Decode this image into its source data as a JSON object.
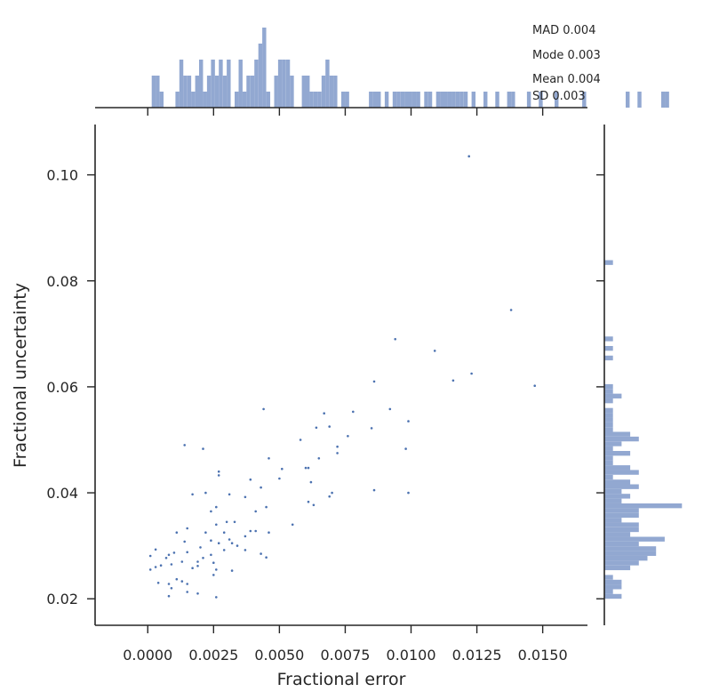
{
  "colors": {
    "bar": "#92a8d1",
    "point": "#4c72b0",
    "axis": "#262626"
  },
  "chart_data": {
    "type": "scatter",
    "variant": "joint plot with marginal histograms",
    "xlabel": "Fractional error",
    "ylabel": "Fractional uncertainty",
    "xlim": [
      -0.002,
      0.0167
    ],
    "ylim": [
      0.015,
      0.1095
    ],
    "x_ticks": [
      "0.0000",
      "0.0025",
      "0.0050",
      "0.0075",
      "0.0100",
      "0.0125",
      "0.0150"
    ],
    "y_ticks": [
      "0.02",
      "0.04",
      "0.06",
      "0.08",
      "0.10"
    ],
    "stats": [
      "MAD 0.004",
      "Mode 0.003",
      "Mean 0.004",
      "SD 0.003"
    ],
    "points": [
      [
        0.0122,
        0.1035
      ],
      [
        0.0138,
        0.0745
      ],
      [
        0.0094,
        0.069
      ],
      [
        0.0109,
        0.0668
      ],
      [
        0.0123,
        0.0625
      ],
      [
        0.0116,
        0.0612
      ],
      [
        0.0086,
        0.061
      ],
      [
        0.0147,
        0.0602
      ],
      [
        0.0044,
        0.0558
      ],
      [
        0.0092,
        0.0558
      ],
      [
        0.0067,
        0.055
      ],
      [
        0.0078,
        0.0553
      ],
      [
        0.0099,
        0.0535
      ],
      [
        0.0064,
        0.0523
      ],
      [
        0.0069,
        0.0525
      ],
      [
        0.0085,
        0.0522
      ],
      [
        0.0076,
        0.0507
      ],
      [
        0.0058,
        0.05
      ],
      [
        0.0072,
        0.0487
      ],
      [
        0.0072,
        0.0475
      ],
      [
        0.0098,
        0.0483
      ],
      [
        0.0014,
        0.049
      ],
      [
        0.0021,
        0.0483
      ],
      [
        0.0046,
        0.0465
      ],
      [
        0.0065,
        0.0465
      ],
      [
        0.0051,
        0.0445
      ],
      [
        0.006,
        0.0447
      ],
      [
        0.0061,
        0.0447
      ],
      [
        0.0027,
        0.044
      ],
      [
        0.0027,
        0.0433
      ],
      [
        0.0039,
        0.0425
      ],
      [
        0.005,
        0.0427
      ],
      [
        0.0062,
        0.042
      ],
      [
        0.0043,
        0.041
      ],
      [
        0.0086,
        0.0405
      ],
      [
        0.0022,
        0.04
      ],
      [
        0.0017,
        0.0397
      ],
      [
        0.0031,
        0.0397
      ],
      [
        0.007,
        0.04
      ],
      [
        0.0069,
        0.0393
      ],
      [
        0.0099,
        0.04
      ],
      [
        0.0037,
        0.0392
      ],
      [
        0.0061,
        0.0383
      ],
      [
        0.0063,
        0.0377
      ],
      [
        0.0026,
        0.0373
      ],
      [
        0.0045,
        0.0373
      ],
      [
        0.0041,
        0.0365
      ],
      [
        0.0024,
        0.0365
      ],
      [
        0.0033,
        0.0345
      ],
      [
        0.003,
        0.0345
      ],
      [
        0.0015,
        0.0333
      ],
      [
        0.0026,
        0.034
      ],
      [
        0.0055,
        0.034
      ],
      [
        0.0011,
        0.0325
      ],
      [
        0.0022,
        0.0325
      ],
      [
        0.0029,
        0.0325
      ],
      [
        0.0039,
        0.0328
      ],
      [
        0.0041,
        0.0328
      ],
      [
        0.0046,
        0.0325
      ],
      [
        0.0037,
        0.0318
      ],
      [
        0.0031,
        0.0312
      ],
      [
        0.0014,
        0.0308
      ],
      [
        0.0024,
        0.031
      ],
      [
        0.0027,
        0.0305
      ],
      [
        0.0032,
        0.0305
      ],
      [
        0.0034,
        0.03
      ],
      [
        0.002,
        0.0297
      ],
      [
        0.0029,
        0.0292
      ],
      [
        0.0003,
        0.0293
      ],
      [
        0.0015,
        0.0288
      ],
      [
        0.001,
        0.0287
      ],
      [
        0.0024,
        0.0283
      ],
      [
        0.0037,
        0.0292
      ],
      [
        0.0043,
        0.0285
      ],
      [
        0.0045,
        0.0278
      ],
      [
        0.0008,
        0.0283
      ],
      [
        0.0001,
        0.0281
      ],
      [
        0.0021,
        0.0277
      ],
      [
        0.0007,
        0.0277
      ],
      [
        0.0013,
        0.027
      ],
      [
        0.0019,
        0.027
      ],
      [
        0.0025,
        0.0268
      ],
      [
        0.0009,
        0.0265
      ],
      [
        0.0005,
        0.0263
      ],
      [
        0.0003,
        0.026
      ],
      [
        0.0001,
        0.0255
      ],
      [
        0.0017,
        0.0258
      ],
      [
        0.0019,
        0.0262
      ],
      [
        0.0026,
        0.0255
      ],
      [
        0.0032,
        0.0253
      ],
      [
        0.0025,
        0.0245
      ],
      [
        0.0011,
        0.0237
      ],
      [
        0.0013,
        0.0233
      ],
      [
        0.0004,
        0.023
      ],
      [
        0.0008,
        0.0228
      ],
      [
        0.0009,
        0.022
      ],
      [
        0.0015,
        0.0228
      ],
      [
        0.0015,
        0.0213
      ],
      [
        0.0019,
        0.021
      ],
      [
        0.0008,
        0.0205
      ],
      [
        0.0026,
        0.0203
      ]
    ],
    "x_histogram": {
      "bin_width": 0.00015,
      "counts": [
        0,
        2,
        2,
        1,
        0,
        0,
        0,
        1,
        3,
        2,
        2,
        1,
        2,
        3,
        1,
        2,
        3,
        2,
        3,
        2,
        3,
        0,
        1,
        3,
        1,
        2,
        2,
        3,
        4,
        5,
        1,
        0,
        2,
        3,
        3,
        3,
        2,
        0,
        0,
        2,
        2,
        1,
        1,
        1,
        2,
        3,
        2,
        2,
        0,
        1,
        1,
        0,
        0,
        0,
        0,
        0,
        1,
        1,
        1,
        0,
        1,
        0,
        1,
        1,
        1,
        1,
        1,
        1,
        1,
        0,
        1,
        1,
        0,
        1,
        1,
        1,
        1,
        1,
        1,
        1,
        1,
        0,
        1,
        0,
        0,
        1,
        0,
        0,
        1,
        0,
        0,
        1,
        1,
        0,
        0,
        0,
        1,
        0,
        0,
        1,
        0,
        0,
        0,
        1,
        0,
        0,
        0,
        0,
        0,
        0,
        1,
        0,
        0,
        0,
        0,
        0,
        0,
        0,
        0,
        0,
        0,
        1,
        0,
        0,
        1,
        0,
        0,
        0,
        0,
        0,
        1,
        1,
        0,
        0,
        0,
        0,
        0,
        0,
        0,
        0,
        0,
        0,
        0,
        0,
        0,
        0,
        0,
        0,
        0,
        0,
        0,
        0,
        0,
        0,
        0,
        0,
        0,
        0,
        1,
        0,
        0,
        0,
        0,
        0,
        0,
        0,
        0,
        0,
        0,
        0,
        0,
        1
      ]
    },
    "y_histogram": {
      "bin_width": 0.0009,
      "counts": [
        2,
        1,
        2,
        2,
        1,
        0,
        3,
        4,
        5,
        6,
        6,
        4,
        7,
        3,
        4,
        4,
        2,
        4,
        4,
        9,
        2,
        3,
        2,
        4,
        3,
        1,
        4,
        3,
        1,
        1,
        3,
        1,
        2,
        4,
        3,
        1,
        1,
        1,
        1,
        1,
        0,
        1,
        2,
        1,
        1,
        0,
        0,
        0,
        0,
        0,
        1,
        0,
        1,
        0,
        1,
        0,
        0,
        0,
        0,
        0,
        0,
        0,
        0,
        0,
        0,
        0,
        0,
        0,
        0,
        0,
        1
      ]
    }
  }
}
